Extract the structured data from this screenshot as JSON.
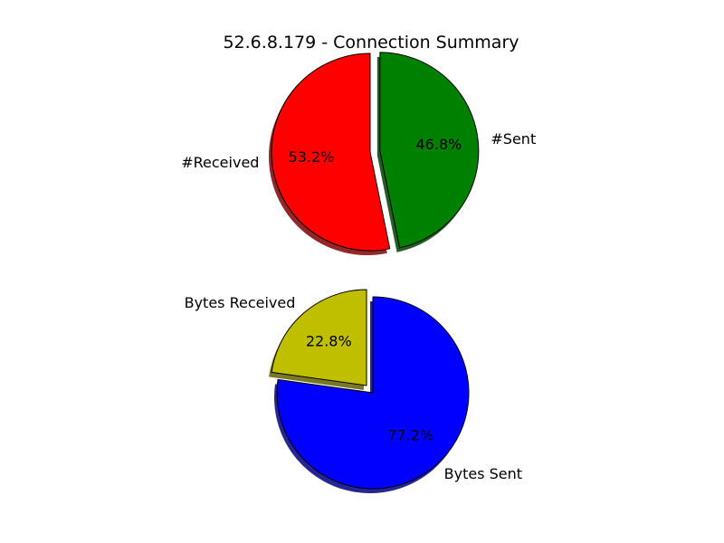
{
  "title": "52.6.8.179 - Connection Summary",
  "chart_data": [
    {
      "type": "pie",
      "title": "52.6.8.179 - Connection Summary",
      "slices": [
        {
          "label": "#Received",
          "percent_label": "53.2%",
          "value": 53.2,
          "color": "#ff0000",
          "exploded": false
        },
        {
          "label": "#Sent",
          "percent_label": "46.8%",
          "value": 46.8,
          "color": "#008000",
          "exploded": true
        }
      ],
      "shadow": true,
      "legend": "none"
    },
    {
      "type": "pie",
      "slices": [
        {
          "label": "Bytes Received",
          "percent_label": "22.8%",
          "value": 22.8,
          "color": "#bfbf00",
          "exploded": true
        },
        {
          "label": "Bytes Sent",
          "percent_label": "77.2%",
          "value": 77.2,
          "color": "#0000ff",
          "exploded": false
        }
      ],
      "shadow": true,
      "legend": "none"
    }
  ]
}
